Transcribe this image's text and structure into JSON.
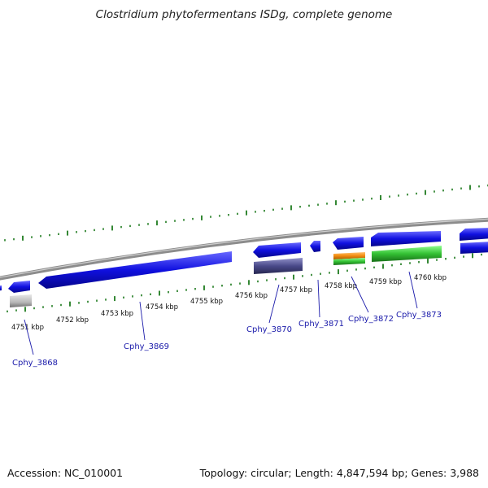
{
  "title": "Clostridium phytofermentans ISDg, complete genome",
  "footer": {
    "accession": "Accession: NC_010001",
    "summary": "Topology: circular; Length: 4,847,594 bp; Genes: 3,988"
  },
  "colors": {
    "backbone": "#8c8c8c",
    "tick": "#1d7a1d",
    "gene_blue": "#1010e0",
    "gene_purple": "#4a4a8a",
    "gene_orange": "#f28c0f",
    "gene_green": "#33c033",
    "gene_grey": "#b8b8b8",
    "label": "#1a1aaa"
  },
  "scale_labels": [
    "4751 kbp",
    "4752 kbp",
    "4753 kbp",
    "4754 kbp",
    "4755 kbp",
    "4756 kbp",
    "4757 kbp",
    "4758 kbp",
    "4759 kbp",
    "4760 kbp"
  ],
  "gene_labels": [
    "Cphy_3868",
    "Cphy_3869",
    "Cphy_3870",
    "Cphy_3871",
    "Cphy_3872",
    "Cphy_3873"
  ]
}
